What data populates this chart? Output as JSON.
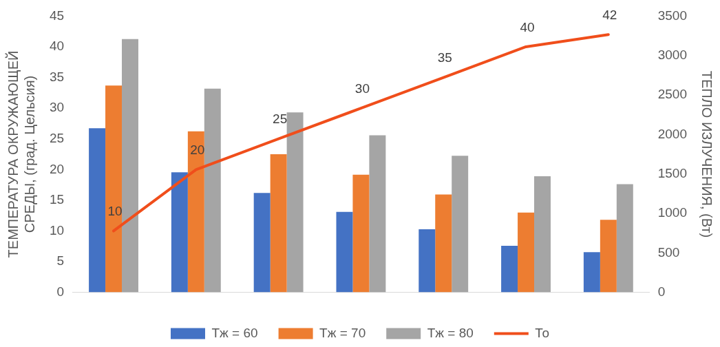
{
  "chart_data": {
    "type": "bar",
    "ylabel": "ТЕМПЕРАТУРА ОКРУЖАЮЩЕЙ СРЕДЫ, (град. Цельсия)",
    "y2label": "ТЕПЛО ИЗЛУЧЕНИЯ, (Вт)",
    "categories": [
      null,
      null,
      null,
      null,
      null,
      null,
      null
    ],
    "series": [
      {
        "name": "Тж = 60",
        "color": "#4472c4",
        "axis": "y2",
        "values": [
          2080,
          1520,
          1260,
          1020,
          800,
          590,
          510
        ]
      },
      {
        "name": "Тж = 70",
        "color": "#ed7d31",
        "axis": "y2",
        "values": [
          2620,
          2040,
          1750,
          1490,
          1240,
          1010,
          920
        ]
      },
      {
        "name": "Тж = 80",
        "color": "#a5a5a5",
        "axis": "y2",
        "values": [
          3210,
          2580,
          2280,
          1990,
          1730,
          1470,
          1370
        ]
      },
      {
        "name": "То",
        "type": "line",
        "color": "#f04e1b",
        "values": [
          10,
          20,
          25,
          30,
          35,
          40,
          42
        ],
        "value_labels": [
          "10",
          "20",
          "25",
          "30",
          "35",
          "40",
          "42"
        ]
      }
    ],
    "ylim": [
      0,
      45
    ],
    "yticks": [
      0,
      5,
      10,
      15,
      20,
      25,
      30,
      35,
      40,
      45
    ],
    "y2lim": [
      0,
      3500
    ],
    "y2ticks": [
      0,
      500,
      1000,
      1500,
      2000,
      2500,
      3000,
      3500
    ],
    "grid": false,
    "legend": "bottom",
    "marker": "none"
  }
}
